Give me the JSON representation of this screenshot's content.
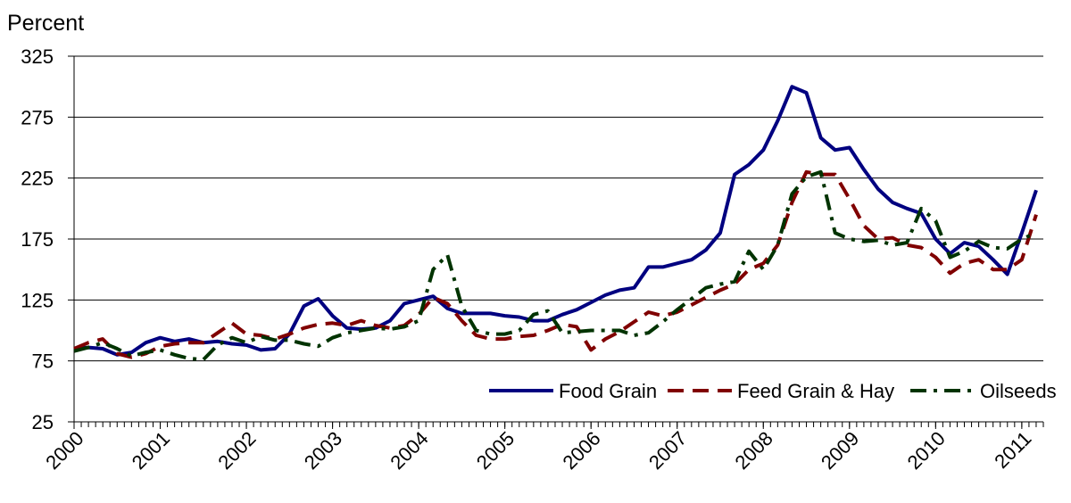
{
  "chart_data": {
    "type": "line",
    "y_axis_label": "Percent",
    "x": [
      2000,
      2000.167,
      2000.333,
      2000.5,
      2000.667,
      2000.833,
      2001,
      2001.167,
      2001.333,
      2001.5,
      2001.667,
      2001.833,
      2002,
      2002.167,
      2002.333,
      2002.5,
      2002.667,
      2002.833,
      2003,
      2003.167,
      2003.333,
      2003.5,
      2003.667,
      2003.833,
      2004,
      2004.167,
      2004.333,
      2004.5,
      2004.667,
      2004.833,
      2005,
      2005.167,
      2005.333,
      2005.5,
      2005.667,
      2005.833,
      2006,
      2006.167,
      2006.333,
      2006.5,
      2006.667,
      2006.833,
      2007,
      2007.167,
      2007.333,
      2007.5,
      2007.667,
      2007.833,
      2008,
      2008.167,
      2008.333,
      2008.5,
      2008.667,
      2008.833,
      2009,
      2009.167,
      2009.333,
      2009.5,
      2009.667,
      2009.833,
      2010,
      2010.167,
      2010.333,
      2010.5,
      2010.667,
      2010.833,
      2011,
      2011.167
    ],
    "series": [
      {
        "name": "Food Grain",
        "color": "#000080",
        "dash": "none",
        "values": [
          85,
          86,
          85,
          80,
          82,
          90,
          94,
          91,
          93,
          90,
          91,
          89,
          88,
          84,
          85,
          97,
          120,
          126,
          112,
          102,
          101,
          102,
          108,
          122,
          125,
          128,
          118,
          114,
          114,
          114,
          112,
          111,
          108,
          108,
          113,
          117,
          123,
          129,
          133,
          135,
          152,
          152,
          155,
          158,
          166,
          180,
          228,
          236,
          248,
          272,
          300,
          295,
          258,
          248,
          250,
          232,
          216,
          205,
          200,
          196,
          175,
          163,
          172,
          169,
          158,
          146,
          180,
          215
        ]
      },
      {
        "name": "Feed Grain & Hay",
        "color": "#800000",
        "dash": "18 10",
        "values": [
          85,
          90,
          93,
          81,
          78,
          81,
          87,
          89,
          90,
          90,
          98,
          106,
          97,
          96,
          93,
          97,
          102,
          105,
          106,
          104,
          108,
          104,
          102,
          104,
          113,
          127,
          122,
          108,
          96,
          93,
          93,
          95,
          96,
          100,
          105,
          103,
          84,
          93,
          99,
          107,
          115,
          112,
          115,
          121,
          127,
          133,
          138,
          150,
          155,
          170,
          205,
          230,
          228,
          228,
          208,
          186,
          175,
          176,
          170,
          168,
          160,
          147,
          155,
          158,
          150,
          150,
          158,
          195
        ]
      },
      {
        "name": "Oilseeds",
        "color": "#003300",
        "dash": "18 8 4 8",
        "values": [
          83,
          86,
          90,
          85,
          79,
          82,
          84,
          80,
          77,
          76,
          88,
          94,
          90,
          95,
          92,
          92,
          89,
          87,
          94,
          98,
          100,
          102,
          101,
          103,
          108,
          150,
          162,
          120,
          100,
          97,
          97,
          100,
          113,
          116,
          98,
          99,
          100,
          100,
          100,
          96,
          98,
          107,
          117,
          126,
          135,
          138,
          140,
          165,
          150,
          170,
          212,
          226,
          230,
          180,
          175,
          173,
          174,
          170,
          172,
          200,
          190,
          160,
          165,
          173,
          168,
          167,
          175,
          180
        ]
      }
    ],
    "xlim": [
      2000,
      2011.25
    ],
    "xticks": [
      2000,
      2001,
      2002,
      2003,
      2004,
      2005,
      2006,
      2007,
      2008,
      2009,
      2010,
      2011
    ],
    "ylim": [
      25,
      325
    ],
    "yticks": [
      25,
      75,
      125,
      175,
      225,
      275,
      325
    ],
    "grid": true,
    "legend": "lower right"
  }
}
